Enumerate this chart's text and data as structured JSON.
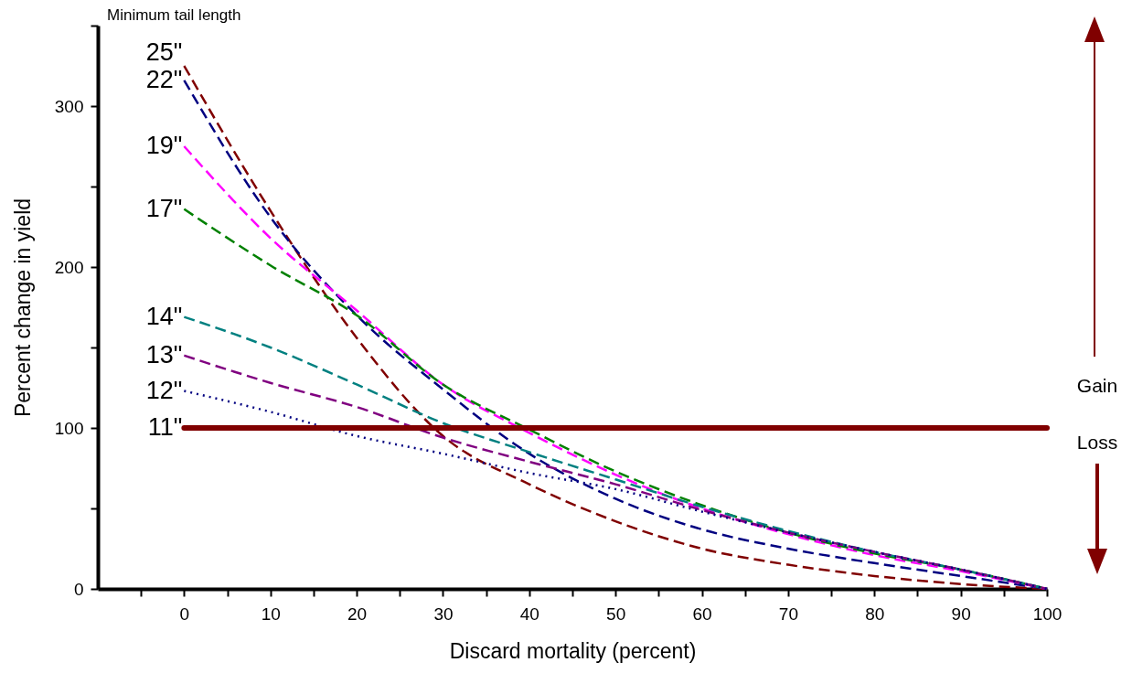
{
  "chart_data": {
    "type": "line",
    "xlabel": "Discard mortality (percent)",
    "ylabel": "Percent change in yield",
    "legend_title": "Minimum tail length",
    "legend": false,
    "grid": false,
    "x": [
      0,
      10,
      20,
      30,
      40,
      50,
      60,
      70,
      80,
      90,
      100
    ],
    "xlim": [
      -10,
      100
    ],
    "xticks": [
      {
        "value": -5,
        "label": null
      },
      0,
      {
        "value": 5,
        "label": null
      },
      10,
      {
        "value": 15,
        "label": null
      },
      20,
      {
        "value": 25,
        "label": null
      },
      30,
      {
        "value": 35,
        "label": null
      },
      40,
      {
        "value": 45,
        "label": null
      },
      50,
      {
        "value": 55,
        "label": null
      },
      60,
      {
        "value": 65,
        "label": null
      },
      70,
      {
        "value": 75,
        "label": null
      },
      80,
      {
        "value": 85,
        "label": null
      },
      90,
      {
        "value": 95,
        "label": null
      },
      100
    ],
    "ylim": [
      0,
      350
    ],
    "yticks": [
      0,
      {
        "value": 50,
        "label": null
      },
      100,
      {
        "value": 150,
        "label": null
      },
      200,
      {
        "value": 250,
        "label": null
      },
      300,
      {
        "value": 350,
        "label": null
      }
    ],
    "series": [
      {
        "name": "25\"",
        "color": "#800000",
        "line_style": "dashed",
        "values": [
          325,
          235,
          156,
          95,
          65,
          42,
          25,
          15,
          8,
          3,
          0
        ]
      },
      {
        "name": "22\"",
        "color": "#000080",
        "line_style": "dashed",
        "values": [
          316,
          231,
          170,
          124,
          84,
          56,
          37,
          25,
          16,
          8,
          0
        ]
      },
      {
        "name": "19\"",
        "color": "#ff00ff",
        "line_style": "dashed",
        "values": [
          275,
          218,
          173,
          127,
          97,
          71,
          50,
          34,
          21,
          11,
          0
        ]
      },
      {
        "name": "17\"",
        "color": "#008000",
        "line_style": "dashed",
        "values": [
          236,
          201,
          170,
          127,
          99,
          73,
          52,
          35,
          22,
          12,
          0
        ]
      },
      {
        "name": "14\"",
        "color": "#008080",
        "line_style": "dashed",
        "values": [
          169,
          150,
          127,
          103,
          85,
          68,
          51,
          36,
          23,
          12,
          0
        ]
      },
      {
        "name": "13\"",
        "color": "#800080",
        "line_style": "dashed",
        "values": [
          145,
          128,
          113,
          94,
          79,
          65,
          49,
          35,
          23,
          12,
          0
        ]
      },
      {
        "name": "12\"",
        "color": "#000080",
        "line_style": "dotted",
        "values": [
          123,
          110,
          95,
          84,
          72,
          62,
          48,
          35,
          23,
          12,
          0
        ]
      },
      {
        "name": "11\"",
        "color": "#800000",
        "line_style": "solid",
        "values": [
          100,
          100,
          100,
          100,
          100,
          100,
          100,
          100,
          100,
          100,
          100
        ]
      }
    ],
    "annotations": [
      "Gain",
      "Loss"
    ]
  }
}
